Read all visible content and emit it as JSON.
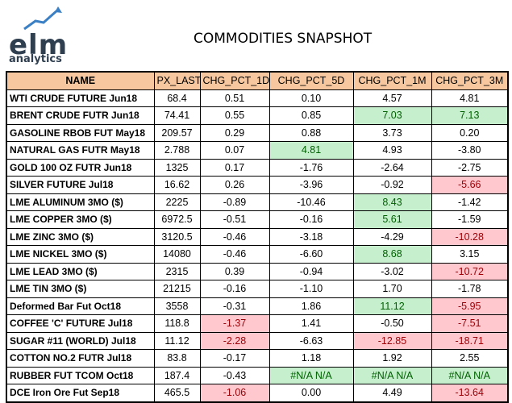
{
  "logo": {
    "brand": "elm",
    "sub": "analytics"
  },
  "title": "COMMODITIES SNAPSHOT",
  "colors": {
    "header_bg": "#f7c89f",
    "pos_bg": "#c6efce",
    "pos_fg": "#006100",
    "neg_bg": "#ffc7ce",
    "neg_fg": "#9c0006"
  },
  "columns": [
    "NAME",
    "PX_LAST",
    "CHG_PCT_1D",
    "CHG_PCT_5D",
    "CHG_PCT_1M",
    "CHG_PCT_3M"
  ],
  "rows": [
    {
      "name": "WTI CRUDE FUTURE  Jun18",
      "px": "68.4",
      "d1": "0.51",
      "d5": "0.10",
      "m1": "4.57",
      "m3": "4.81",
      "hl": [
        "",
        "",
        "",
        ""
      ]
    },
    {
      "name": "BRENT CRUDE FUTR  Jun18",
      "px": "74.41",
      "d1": "0.55",
      "d5": "0.85",
      "m1": "7.03",
      "m3": "7.13",
      "hl": [
        "",
        "",
        "pos",
        "pos"
      ]
    },
    {
      "name": "GASOLINE RBOB FUT May18",
      "px": "209.57",
      "d1": "0.29",
      "d5": "0.88",
      "m1": "3.73",
      "m3": "0.20",
      "hl": [
        "",
        "",
        "",
        ""
      ]
    },
    {
      "name": "NATURAL GAS FUTR  May18",
      "px": "2.788",
      "d1": "0.07",
      "d5": "4.81",
      "m1": "4.93",
      "m3": "-3.80",
      "hl": [
        "",
        "pos",
        "",
        ""
      ]
    },
    {
      "name": "GOLD 100 OZ FUTR  Jun18",
      "px": "1325",
      "d1": "0.17",
      "d5": "-1.76",
      "m1": "-2.64",
      "m3": "-2.75",
      "hl": [
        "",
        "",
        "",
        ""
      ]
    },
    {
      "name": "SILVER FUTURE     Jul18",
      "px": "16.62",
      "d1": "0.26",
      "d5": "-3.96",
      "m1": "-0.92",
      "m3": "-5.66",
      "hl": [
        "",
        "",
        "",
        "neg"
      ]
    },
    {
      "name": "LME ALUMINUM  3MO ($)",
      "px": "2225",
      "d1": "-0.89",
      "d5": "-10.46",
      "m1": "8.43",
      "m3": "-1.42",
      "hl": [
        "",
        "",
        "pos",
        ""
      ]
    },
    {
      "name": "LME COPPER    3MO ($)",
      "px": "6972.5",
      "d1": "-0.51",
      "d5": "-0.16",
      "m1": "5.61",
      "m3": "-1.59",
      "hl": [
        "",
        "",
        "pos",
        ""
      ]
    },
    {
      "name": "LME ZINC      3MO ($)",
      "px": "3120.5",
      "d1": "-0.46",
      "d5": "-3.18",
      "m1": "-4.29",
      "m3": "-10.28",
      "hl": [
        "",
        "",
        "",
        "neg"
      ]
    },
    {
      "name": "LME NICKEL    3MO ($)",
      "px": "14080",
      "d1": "-0.46",
      "d5": "-6.60",
      "m1": "8.68",
      "m3": "3.15",
      "hl": [
        "",
        "",
        "pos",
        ""
      ]
    },
    {
      "name": "LME LEAD      3MO ($)",
      "px": "2315",
      "d1": "0.39",
      "d5": "-0.94",
      "m1": "-3.02",
      "m3": "-10.72",
      "hl": [
        "",
        "",
        "",
        "neg"
      ]
    },
    {
      "name": "LME TIN       3MO ($)",
      "px": "21215",
      "d1": "-0.16",
      "d5": "-1.10",
      "m1": "1.70",
      "m3": "-1.78",
      "hl": [
        "",
        "",
        "",
        ""
      ]
    },
    {
      "name": "Deformed Bar Fut  Oct18",
      "px": "3558",
      "d1": "-0.31",
      "d5": "1.86",
      "m1": "11.12",
      "m3": "-5.95",
      "hl": [
        "",
        "",
        "pos",
        "neg"
      ]
    },
    {
      "name": "COFFEE 'C' FUTURE Jul18",
      "px": "118.8",
      "d1": "-1.37",
      "d5": "1.41",
      "m1": "-0.50",
      "m3": "-7.51",
      "hl": [
        "neg",
        "",
        "",
        "neg"
      ]
    },
    {
      "name": "SUGAR #11 (WORLD) Jul18",
      "px": "11.12",
      "d1": "-2.28",
      "d5": "-6.63",
      "m1": "-12.85",
      "m3": "-18.71",
      "hl": [
        "neg",
        "",
        "neg",
        "neg"
      ]
    },
    {
      "name": "COTTON NO.2 FUTR  Jul18",
      "px": "83.8",
      "d1": "-0.17",
      "d5": "1.18",
      "m1": "1.92",
      "m3": "2.55",
      "hl": [
        "",
        "",
        "",
        ""
      ]
    },
    {
      "name": "RUBBER FUT   TCOM Oct18",
      "px": "187.4",
      "d1": "-0.43",
      "d5": "#N/A N/A",
      "m1": "#N/A N/A",
      "m3": "#N/A N/A",
      "hl": [
        "",
        "pos",
        "pos",
        "pos"
      ]
    },
    {
      "name": "DCE Iron Ore Fut  Sep18",
      "px": "465.5",
      "d1": "-1.06",
      "d5": "0.00",
      "m1": "4.49",
      "m3": "-13.64",
      "hl": [
        "neg",
        "",
        "",
        "neg"
      ]
    }
  ]
}
